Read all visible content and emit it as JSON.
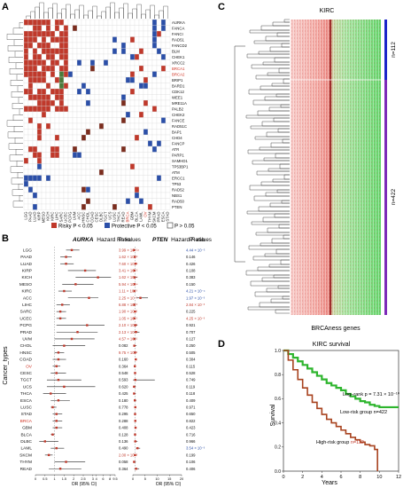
{
  "panels": {
    "a": {
      "letter": "A"
    },
    "b": {
      "letter": "B"
    },
    "c": {
      "letter": "C"
    },
    "d": {
      "letter": "D"
    }
  },
  "heatmap_a": {
    "row_genes": [
      "AURKA",
      "FANCA",
      "FANCI",
      "RAD51",
      "FANCD2",
      "BLM",
      "CHEK1",
      "XRCC2",
      "BRCA1",
      "BRCA2",
      "BRIP1",
      "BARD1",
      "CDK12",
      "WEE1",
      "MRE11A",
      "PALB2",
      "CHEK2",
      "FANCE",
      "RAD51C",
      "BAP1",
      "CHD4",
      "FANCP",
      "ATR",
      "PARP1",
      "SAMHD1",
      "TP53BP1",
      "ATM",
      "ERCC1",
      "TP53",
      "RAD52",
      "NBS1",
      "RAD50",
      "PTEN"
    ],
    "col_cancers": [
      "LGG",
      "PAAD",
      "LUAD",
      "KIRP",
      "MESO",
      "KICH",
      "KIRC",
      "LIHC",
      "SARC",
      "UCEC",
      "PCPG",
      "UVM",
      "ACC",
      "HNSC",
      "CHOL",
      "COAD",
      "CESC",
      "DLBC",
      "TGCT",
      "UCS",
      "LUSC",
      "THCA",
      "READ",
      "BRCA",
      "GBM",
      "BLCA",
      "LAML",
      "OV",
      "THYM",
      "SKCM",
      "PRAD",
      "ESCA",
      "STAD"
    ],
    "legend": {
      "risky": "Risky P < 0.05",
      "protective": "Protective P < 0.05",
      "ns": "P > 0.05"
    },
    "colors": {
      "risky": "#c0392b",
      "protective": "#2b4fa8",
      "ns": "#ffffff",
      "darkred": "#7b2d1e",
      "green": "#4a7a3a"
    }
  },
  "forest_b": {
    "ylabel": "Cancer_types",
    "left_title_gene": "AURKA",
    "right_title_gene": "PTEN",
    "title_suffix": "Hazard Ratio",
    "pval_header": "P−values",
    "xlabel": "OR (95% CI)",
    "cancers": [
      "LGG",
      "PAAD",
      "LUAD",
      "KIRP",
      "KICH",
      "MESO",
      "KIRC",
      "ACC",
      "LIHC",
      "SARC",
      "UCEC",
      "PCPG",
      "PRAD",
      "UVM",
      "CHOL",
      "HNSC",
      "COAD",
      "OV",
      "CESC",
      "TGCT",
      "UCS",
      "THCA",
      "ESCA",
      "LUSC",
      "STAD",
      "BRCA",
      "GBM",
      "BLCA",
      "DLBC",
      "LAML",
      "SKCM",
      "THYM",
      "READ"
    ],
    "highlight_cancers": [
      "OV",
      "BRCA"
    ],
    "left_pvals": [
      "3.99 × 10⁻¹⁴",
      "1.62 × 10⁻⁶",
      "7.60 × 10⁻⁵",
      "3.41 × 10⁻⁵",
      "1.62 × 10⁻⁴",
      "5.94 × 10⁻⁴",
      "1.11 × 10⁻³",
      "2.25 × 10⁻³",
      "6.88 × 10⁻³",
      "1.90 × 10⁻²",
      "1.05 × 10⁻²",
      "2.10 × 10⁻²",
      "2.13 × 10⁻²",
      "4.57 × 10⁻²",
      "0.082",
      "9.75 × 10⁻²",
      "0.160",
      "0.364",
      "0.548",
      "0.593",
      "0.620",
      "0.425",
      "0.180",
      "0.778",
      "0.295",
      "0.288",
      "0.408",
      "0.128",
      "0.136",
      "0.490",
      "2.00 × 10⁻³",
      "0.058",
      "0.364"
    ],
    "right_pvals": [
      "4.44 × 10⁻⁵",
      "0.146",
      "0.426",
      "0.108",
      "0.383",
      "0.150",
      "4.21 × 10⁻⁴",
      "1.97 × 10⁻³",
      "2.84 × 10⁻³",
      "0.225",
      "4.25 × 10⁻³",
      "0.921",
      "0.707",
      "0.127",
      "0.250",
      "0.505",
      "0.304",
      "0.115",
      "0.528",
      "0.749",
      "0.119",
      "0.118",
      "0.409",
      "0.971",
      "0.650",
      "0.822",
      "0.423",
      "0.716",
      "0.966",
      "3.54 × 10⁻³",
      "0.199",
      "0.106",
      "0.406"
    ],
    "left_hr": [
      1.9,
      1.6,
      1.6,
      2.6,
      4.5,
      2.1,
      1.5,
      2.8,
      1.4,
      1.3,
      1.3,
      2.7,
      2.2,
      1.9,
      1.5,
      1.2,
      1.2,
      1.1,
      1.1,
      1.2,
      1.5,
      0.8,
      1.2,
      0.9,
      1.1,
      1.1,
      1.1,
      0.9,
      0.5,
      1.1,
      0.7,
      1.6,
      1.3
    ],
    "left_lo": [
      1.6,
      1.3,
      1.3,
      1.7,
      2.1,
      1.4,
      1.2,
      1.7,
      1.1,
      1.1,
      1.1,
      1.1,
      1.1,
      1.0,
      0.9,
      1.0,
      0.9,
      0.9,
      0.8,
      0.6,
      0.6,
      0.4,
      0.8,
      0.8,
      0.9,
      0.9,
      0.9,
      0.8,
      0.2,
      0.8,
      0.5,
      1.0,
      0.7
    ],
    "left_hi": [
      2.3,
      1.9,
      2.0,
      3.9,
      8.3,
      3.2,
      1.9,
      4.6,
      1.8,
      1.6,
      1.6,
      6.4,
      4.4,
      3.5,
      2.6,
      1.5,
      1.6,
      1.3,
      1.6,
      2.4,
      3.7,
      1.6,
      1.8,
      1.1,
      1.4,
      1.4,
      1.4,
      1.0,
      1.2,
      1.5,
      0.9,
      2.6,
      2.4
    ],
    "right_hr": [
      0.5,
      0.8,
      1.1,
      0.6,
      0.7,
      0.7,
      0.6,
      3.1,
      0.6,
      0.9,
      0.6,
      1.0,
      1.2,
      0.6,
      0.6,
      0.9,
      1.2,
      0.8,
      0.9,
      1.0,
      0.5,
      0.5,
      0.8,
      1.0,
      0.9,
      1.0,
      1.1,
      0.9,
      1.0,
      1.9,
      0.9,
      0.5,
      1.3
    ],
    "right_lo": [
      0.4,
      0.6,
      0.8,
      0.3,
      0.2,
      0.4,
      0.5,
      1.5,
      0.4,
      0.6,
      0.4,
      0.5,
      0.5,
      0.3,
      0.2,
      0.7,
      0.9,
      0.6,
      0.6,
      0.1,
      0.2,
      0.2,
      0.5,
      0.8,
      0.7,
      0.8,
      0.9,
      0.6,
      0.5,
      1.2,
      0.7,
      0.2,
      0.6
    ],
    "right_hi": [
      0.7,
      1.1,
      1.4,
      1.1,
      1.8,
      1.1,
      0.8,
      6.2,
      0.8,
      1.2,
      0.8,
      1.9,
      2.7,
      1.2,
      1.5,
      1.2,
      1.6,
      1.1,
      1.3,
      9.0,
      1.2,
      1.2,
      1.4,
      1.3,
      1.2,
      1.2,
      1.3,
      1.2,
      1.9,
      3.0,
      1.1,
      1.2,
      2.6
    ],
    "left_ticks": [
      "0",
      "0.5",
      "1",
      "1.5",
      "2",
      "2.5",
      "3",
      "4",
      "6",
      "8",
      "9.5"
    ],
    "right_ticks": [
      "0",
      "5",
      "10",
      "15",
      "20"
    ]
  },
  "heatmap_c": {
    "title": "KIRC",
    "xlabel": "BRCAness genes",
    "group_top": "n=112",
    "group_bottom": "n=422"
  },
  "chart_data": {
    "type": "line",
    "title": "KIRC survival",
    "xlabel": "Years",
    "ylabel": "Survival",
    "xlim": [
      0,
      12
    ],
    "ylim": [
      0,
      1
    ],
    "xticks": [
      "0",
      "2",
      "4",
      "6",
      "8",
      "10",
      "12"
    ],
    "yticks": [
      "0.0",
      "0.2",
      "0.4",
      "0.6",
      "0.8",
      "1.0"
    ],
    "annotation": "Log−rank p = 7.31 × 10⁻¹⁰",
    "series": [
      {
        "name": "Low-risk group n=422",
        "color": "#2db52d",
        "x": [
          0,
          0.5,
          1,
          1.5,
          2,
          2.5,
          3,
          3.5,
          4,
          4.5,
          5,
          5.5,
          6,
          6.5,
          7,
          7.5,
          8,
          8.5,
          9,
          9.5,
          10,
          10.5,
          11,
          11.5,
          12
        ],
        "y": [
          1.0,
          0.97,
          0.94,
          0.91,
          0.88,
          0.85,
          0.82,
          0.79,
          0.76,
          0.73,
          0.71,
          0.69,
          0.67,
          0.64,
          0.62,
          0.6,
          0.58,
          0.57,
          0.55,
          0.54,
          0.53,
          0.53,
          0.53,
          0.53,
          0.53
        ]
      },
      {
        "name": "High-risk group n=112",
        "color": "#a8421e",
        "x": [
          0,
          0.5,
          1,
          1.5,
          2,
          2.5,
          3,
          3.5,
          4,
          4.5,
          5,
          5.5,
          6,
          6.5,
          7,
          7.5,
          8,
          8.5,
          9,
          9.5,
          9.8
        ],
        "y": [
          1.0,
          0.92,
          0.84,
          0.76,
          0.69,
          0.63,
          0.57,
          0.52,
          0.47,
          0.43,
          0.4,
          0.37,
          0.34,
          0.31,
          0.28,
          0.26,
          0.24,
          0.22,
          0.21,
          0.18,
          0.0
        ]
      }
    ]
  }
}
